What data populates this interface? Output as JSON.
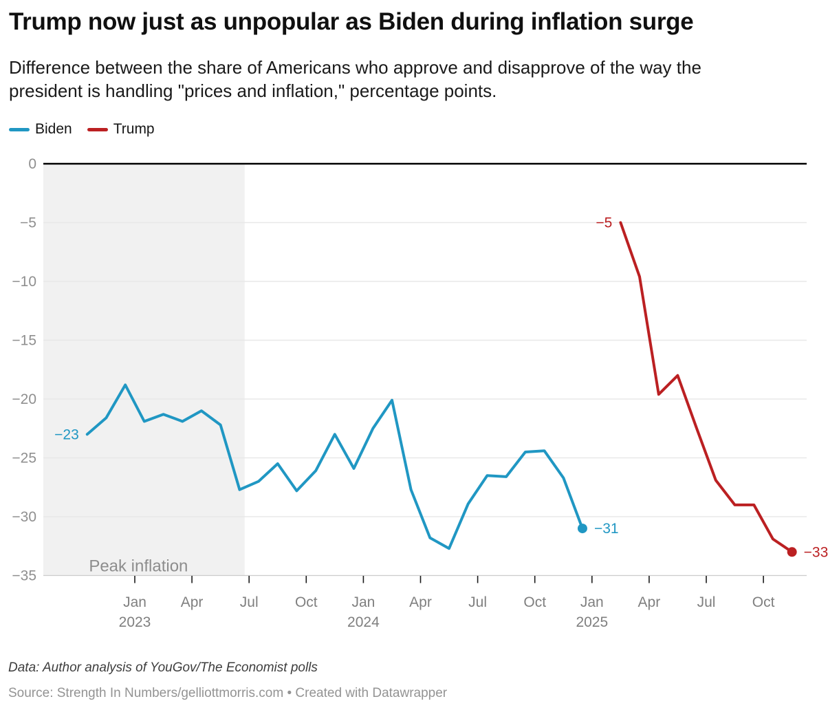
{
  "header": {
    "title": "Trump now just as unpopular as Biden during inflation surge",
    "subtitle_lines": [
      "Difference between the share of Americans who approve and disapprove of the way the",
      "president is handling \"prices and inflation,\" percentage points."
    ]
  },
  "legend": {
    "items": [
      {
        "label": "Biden",
        "color": "#2097c3"
      },
      {
        "label": "Trump",
        "color": "#bb2022"
      }
    ]
  },
  "footer": {
    "data_line": "Data: Author analysis of YouGov/The Economist polls",
    "source_line": "Source: Strength In Numbers/gelliottmorris.com • Created with Datawrapper"
  },
  "chart_data": {
    "type": "line",
    "title": "Trump now just as unpopular as Biden during inflation surge",
    "xlabel": "",
    "ylabel": "",
    "grid": true,
    "legend_position": "top-left",
    "ylim": [
      -35,
      0
    ],
    "yticks": [
      {
        "value": 0,
        "label": "0"
      },
      {
        "value": -5,
        "label": "−5"
      },
      {
        "value": -10,
        "label": "−10"
      },
      {
        "value": -15,
        "label": "−15"
      },
      {
        "value": -20,
        "label": "−20"
      },
      {
        "value": -25,
        "label": "−25"
      },
      {
        "value": -30,
        "label": "−30"
      },
      {
        "value": -35,
        "label": "−35"
      }
    ],
    "xticks": [
      {
        "date": "2023-01-01",
        "label": "Jan",
        "year": "2023"
      },
      {
        "date": "2023-04-01",
        "label": "Apr"
      },
      {
        "date": "2023-07-01",
        "label": "Jul"
      },
      {
        "date": "2023-10-01",
        "label": "Oct"
      },
      {
        "date": "2024-01-01",
        "label": "Jan",
        "year": "2024"
      },
      {
        "date": "2024-04-01",
        "label": "Apr"
      },
      {
        "date": "2024-07-01",
        "label": "Jul"
      },
      {
        "date": "2024-10-01",
        "label": "Oct"
      },
      {
        "date": "2025-01-01",
        "label": "Jan",
        "year": "2025"
      },
      {
        "date": "2025-04-01",
        "label": "Apr"
      },
      {
        "date": "2025-07-01",
        "label": "Jul"
      },
      {
        "date": "2025-10-01",
        "label": "Oct"
      }
    ],
    "annotation_region": {
      "label": "Peak inflation",
      "start": "2022-08-01",
      "end": "2023-06-24",
      "color": "#f1f1f1",
      "label_color": "#8d8d8d"
    },
    "series": [
      {
        "name": "Biden",
        "color": "#2097c3",
        "first_label": "−23",
        "last_label": "−31",
        "end_dot": true,
        "points": [
          {
            "date": "2022-10",
            "value": -23
          },
          {
            "date": "2022-11",
            "value": -21.6
          },
          {
            "date": "2022-12",
            "value": -18.8
          },
          {
            "date": "2023-01",
            "value": -21.9
          },
          {
            "date": "2023-02",
            "value": -21.3
          },
          {
            "date": "2023-03",
            "value": -21.9
          },
          {
            "date": "2023-04",
            "value": -21.0
          },
          {
            "date": "2023-05",
            "value": -22.2
          },
          {
            "date": "2023-06",
            "value": -27.7
          },
          {
            "date": "2023-07",
            "value": -27.0
          },
          {
            "date": "2023-08",
            "value": -25.5
          },
          {
            "date": "2023-09",
            "value": -27.8
          },
          {
            "date": "2023-10",
            "value": -26.1
          },
          {
            "date": "2023-11",
            "value": -23.0
          },
          {
            "date": "2023-12",
            "value": -25.9
          },
          {
            "date": "2024-01",
            "value": -22.5
          },
          {
            "date": "2024-02",
            "value": -20.1
          },
          {
            "date": "2024-03",
            "value": -27.7
          },
          {
            "date": "2024-04",
            "value": -31.8
          },
          {
            "date": "2024-05",
            "value": -32.7
          },
          {
            "date": "2024-06",
            "value": -28.9
          },
          {
            "date": "2024-07",
            "value": -26.5
          },
          {
            "date": "2024-08",
            "value": -26.6
          },
          {
            "date": "2024-09",
            "value": -24.5
          },
          {
            "date": "2024-10",
            "value": -24.4
          },
          {
            "date": "2024-11",
            "value": -26.7
          },
          {
            "date": "2024-12",
            "value": -31
          }
        ]
      },
      {
        "name": "Trump",
        "color": "#bb2022",
        "first_label": "−5",
        "last_label": "−33",
        "end_dot": true,
        "points": [
          {
            "date": "2025-02",
            "value": -5
          },
          {
            "date": "2025-03",
            "value": -9.6
          },
          {
            "date": "2025-04",
            "value": -19.6
          },
          {
            "date": "2025-05",
            "value": -18.0
          },
          {
            "date": "2025-06",
            "value": -22.5
          },
          {
            "date": "2025-07",
            "value": -26.9
          },
          {
            "date": "2025-08",
            "value": -29.0
          },
          {
            "date": "2025-09",
            "value": -29.0
          },
          {
            "date": "2025-10",
            "value": -31.9
          },
          {
            "date": "2025-11",
            "value": -33
          }
        ]
      }
    ]
  }
}
